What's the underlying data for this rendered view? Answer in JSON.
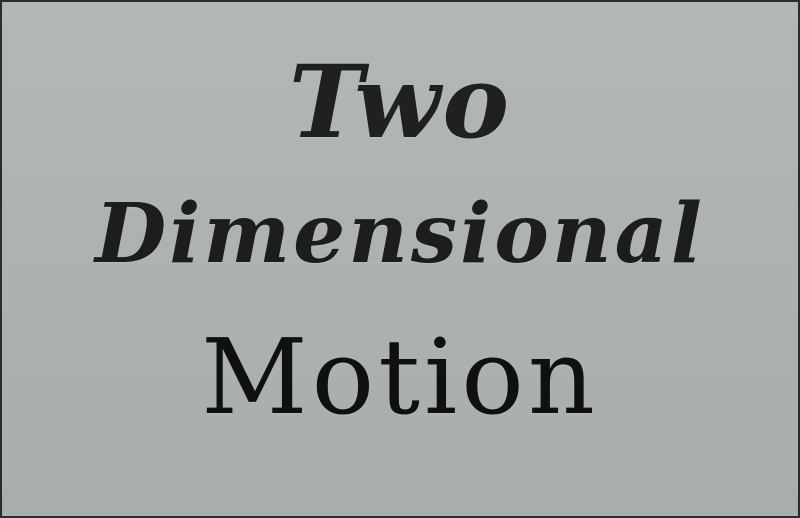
{
  "slide": {
    "background_color": "#adb1b1",
    "border_color": "#2a2d2f",
    "text_color": "#1a1b1c",
    "title_lines": [
      "Two",
      "Dimensional",
      "Motion"
    ]
  }
}
